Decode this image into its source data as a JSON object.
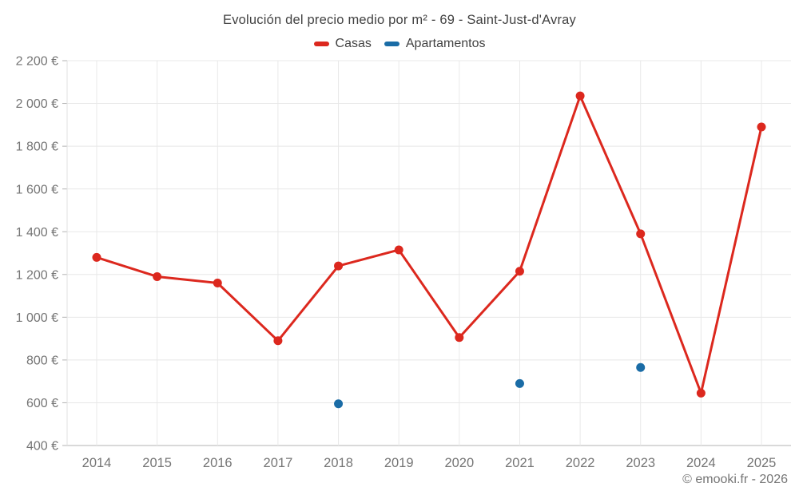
{
  "chart_data": {
    "type": "line",
    "title": "Evolución del precio medio por m² - 69 - Saint-Just-d'Avray",
    "categories": [
      "2014",
      "2015",
      "2016",
      "2017",
      "2018",
      "2019",
      "2020",
      "2021",
      "2022",
      "2023",
      "2024",
      "2025"
    ],
    "series": [
      {
        "name": "Casas",
        "color": "#dc281e",
        "draw_line": true,
        "values": [
          1280,
          1190,
          1160,
          890,
          1240,
          1315,
          905,
          1215,
          2035,
          1390,
          645,
          1890
        ]
      },
      {
        "name": "Apartamentos",
        "color": "#1a6ca6",
        "draw_line": false,
        "values": [
          null,
          null,
          null,
          null,
          595,
          null,
          null,
          690,
          null,
          765,
          null,
          null
        ]
      }
    ],
    "ylim": [
      400,
      2200
    ],
    "y_ticks": [
      {
        "value": 400,
        "label": "400 €"
      },
      {
        "value": 600,
        "label": "600 €"
      },
      {
        "value": 800,
        "label": "800 €"
      },
      {
        "value": 1000,
        "label": "1 000 €"
      },
      {
        "value": 1200,
        "label": "1 200 €"
      },
      {
        "value": 1400,
        "label": "1 400 €"
      },
      {
        "value": 1600,
        "label": "1 600 €"
      },
      {
        "value": 1800,
        "label": "1 800 €"
      },
      {
        "value": 2000,
        "label": "2 000 €"
      },
      {
        "value": 2200,
        "label": "2 200 €"
      }
    ],
    "grid": "on",
    "legend_position": "top"
  },
  "footer": {
    "text": "© emooki.fr - 2026"
  },
  "colors": {
    "grid": "#e8e8e8",
    "axis_line": "#b3b3b3",
    "left_axis_line": "#e0e0e0",
    "tick_text": "#757575",
    "title_text": "#424242"
  }
}
